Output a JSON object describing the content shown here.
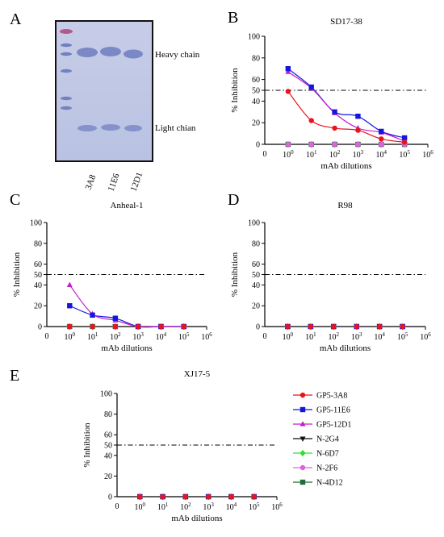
{
  "panel_letters": [
    "A",
    "B",
    "C",
    "D",
    "E"
  ],
  "gel": {
    "lanes": [
      "3A8",
      "11E6",
      "12D1"
    ],
    "labels": {
      "heavy": "Heavy chain",
      "light": "Light chian"
    }
  },
  "legend": [
    {
      "name": "GP5-3A8",
      "color": "#e8141c",
      "marker": "circle"
    },
    {
      "name": "GP5-11E6",
      "color": "#1515e0",
      "marker": "square"
    },
    {
      "name": "GP5-12D1",
      "color": "#c020c8",
      "marker": "triangle-up"
    },
    {
      "name": "N-2G4",
      "color": "#111111",
      "marker": "triangle-down"
    },
    {
      "name": "N-6D7",
      "color": "#2ee02e",
      "marker": "diamond"
    },
    {
      "name": "N-2F6",
      "color": "#e060e0",
      "marker": "circle"
    },
    {
      "name": "N-4D12",
      "color": "#1e6e3a",
      "marker": "square"
    }
  ],
  "chart_data": [
    {
      "type": "scatter",
      "title": "SD17-38",
      "xlabel": "mAb dilutions",
      "ylabel": "% Inhibition",
      "x_scale": "log10",
      "xlim": [
        1,
        1000000
      ],
      "ylim": [
        0,
        100
      ],
      "yticks": [
        0,
        20,
        40,
        50,
        60,
        80,
        100
      ],
      "reference_line": 50,
      "x": [
        1,
        10,
        100,
        1000,
        10000,
        100000
      ],
      "series": [
        {
          "name": "GP5-3A8",
          "values": [
            49,
            22,
            15,
            13,
            5,
            2
          ]
        },
        {
          "name": "GP5-11E6",
          "values": [
            70,
            53,
            30,
            26,
            12,
            6
          ]
        },
        {
          "name": "GP5-12D1",
          "values": [
            67,
            52,
            29,
            15,
            11,
            3
          ]
        },
        {
          "name": "N-2G4",
          "values": [
            0,
            0,
            0,
            0,
            0,
            0
          ]
        },
        {
          "name": "N-6D7",
          "values": [
            0,
            0,
            0,
            0,
            0,
            0
          ]
        },
        {
          "name": "N-2F6",
          "values": [
            0,
            0,
            0,
            0,
            0,
            0
          ]
        },
        {
          "name": "N-4D12",
          "values": [
            0,
            0,
            0,
            0,
            0,
            0
          ]
        }
      ]
    },
    {
      "type": "scatter",
      "title": "Anheal-1",
      "xlabel": "mAb dilutions",
      "ylabel": "% Inhibition",
      "x_scale": "log10",
      "xlim": [
        1,
        1000000
      ],
      "ylim": [
        0,
        100
      ],
      "yticks": [
        0,
        20,
        40,
        50,
        60,
        80,
        100
      ],
      "reference_line": 50,
      "x": [
        1,
        10,
        100,
        1000,
        10000,
        100000
      ],
      "series": [
        {
          "name": "GP5-3A8",
          "values": [
            0,
            0,
            0,
            0,
            0,
            0
          ]
        },
        {
          "name": "GP5-11E6",
          "values": [
            20,
            11,
            8,
            0,
            0,
            0
          ]
        },
        {
          "name": "GP5-12D1",
          "values": [
            40,
            12,
            6,
            0,
            0,
            0
          ]
        },
        {
          "name": "N-2G4",
          "values": [
            0,
            0,
            0,
            0,
            0,
            0
          ]
        },
        {
          "name": "N-6D7",
          "values": [
            0,
            0,
            0,
            0,
            0,
            0
          ]
        },
        {
          "name": "N-2F6",
          "values": [
            0,
            0,
            0,
            0,
            0,
            0
          ]
        },
        {
          "name": "N-4D12",
          "values": [
            0,
            0,
            0,
            0,
            0,
            0
          ]
        }
      ]
    },
    {
      "type": "scatter",
      "title": "R98",
      "xlabel": "mAb dilutions",
      "ylabel": "% Inhibition",
      "x_scale": "log10",
      "xlim": [
        1,
        1000000
      ],
      "ylim": [
        0,
        100
      ],
      "yticks": [
        0,
        20,
        40,
        50,
        60,
        80,
        100
      ],
      "reference_line": 50,
      "x": [
        1,
        10,
        100,
        1000,
        10000,
        100000
      ],
      "series": [
        {
          "name": "GP5-3A8",
          "values": [
            0,
            0,
            0,
            0,
            0,
            0
          ]
        },
        {
          "name": "GP5-11E6",
          "values": [
            0,
            0,
            0,
            0,
            0,
            0
          ]
        },
        {
          "name": "GP5-12D1",
          "values": [
            0,
            0,
            0,
            0,
            0,
            0
          ]
        },
        {
          "name": "N-2G4",
          "values": [
            0,
            0,
            0,
            0,
            0,
            0
          ]
        },
        {
          "name": "N-6D7",
          "values": [
            0,
            0,
            0,
            0,
            0,
            0
          ]
        },
        {
          "name": "N-2F6",
          "values": [
            0,
            0,
            0,
            0,
            0,
            0
          ]
        },
        {
          "name": "N-4D12",
          "values": [
            0,
            0,
            0,
            0,
            0,
            0
          ]
        }
      ]
    },
    {
      "type": "scatter",
      "title": "XJ17-5",
      "xlabel": "mAb dilutions",
      "ylabel": "% Inhibition",
      "x_scale": "log10",
      "xlim": [
        1,
        1000000
      ],
      "ylim": [
        0,
        100
      ],
      "yticks": [
        0,
        20,
        40,
        50,
        60,
        80,
        100
      ],
      "reference_line": 50,
      "x": [
        1,
        10,
        100,
        1000,
        10000,
        100000
      ],
      "series": [
        {
          "name": "GP5-3A8",
          "values": [
            0,
            0,
            0,
            0,
            0,
            0
          ]
        },
        {
          "name": "GP5-11E6",
          "values": [
            0,
            0,
            0,
            0,
            0,
            0
          ]
        },
        {
          "name": "GP5-12D1",
          "values": [
            0,
            0,
            0,
            0,
            0,
            0
          ]
        },
        {
          "name": "N-2G4",
          "values": [
            0,
            0,
            0,
            0,
            0,
            0
          ]
        },
        {
          "name": "N-6D7",
          "values": [
            0,
            0,
            0,
            0,
            0,
            0
          ]
        },
        {
          "name": "N-2F6",
          "values": [
            0,
            0,
            0,
            0,
            0,
            0
          ]
        },
        {
          "name": "N-4D12",
          "values": [
            0,
            0,
            0,
            0,
            0,
            0
          ]
        }
      ]
    }
  ]
}
